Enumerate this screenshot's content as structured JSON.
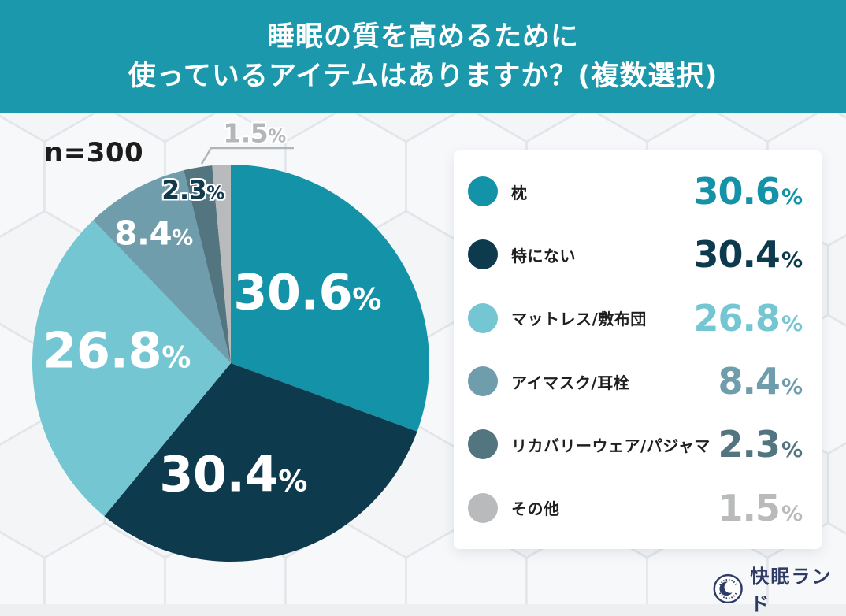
{
  "header": {
    "title_line1": "睡眠の質を高めるために",
    "title_line2": "使っているアイテムはありますか？(複数選択)"
  },
  "sample_label": "n=300",
  "strings": {
    "percent": "%"
  },
  "chart_data": {
    "type": "pie",
    "title": "睡眠の質を高めるために使っているアイテムはありますか？(複数選択)",
    "sample_label": "n=300",
    "start_angle_deg": 0,
    "direction": "clockwise",
    "legend_position": "right",
    "slices": [
      {
        "label": "枕",
        "value": 30.6,
        "color": "#1492a7",
        "label_color": "#ffffff"
      },
      {
        "label": "特にない",
        "value": 30.4,
        "color": "#0e3a4e",
        "label_color": "#ffffff"
      },
      {
        "label": "マットレス/敷布団",
        "value": 26.8,
        "color": "#74c6d3",
        "label_color": "#ffffff"
      },
      {
        "label": "アイマスク/耳栓",
        "value": 8.4,
        "color": "#6f9dac",
        "label_color": "#ffffff"
      },
      {
        "label": "リカバリーウェア/パジャマ",
        "value": 2.3,
        "color": "#527580",
        "label_color": "#123a4d"
      },
      {
        "label": "その他",
        "value": 1.5,
        "color": "#b9babc",
        "label_color": "#b4b6b9"
      }
    ]
  },
  "footer": {
    "brand": "快眠ランド",
    "badge_icon": "crescent-moon-badge",
    "brand_color": "#2e3b64"
  }
}
